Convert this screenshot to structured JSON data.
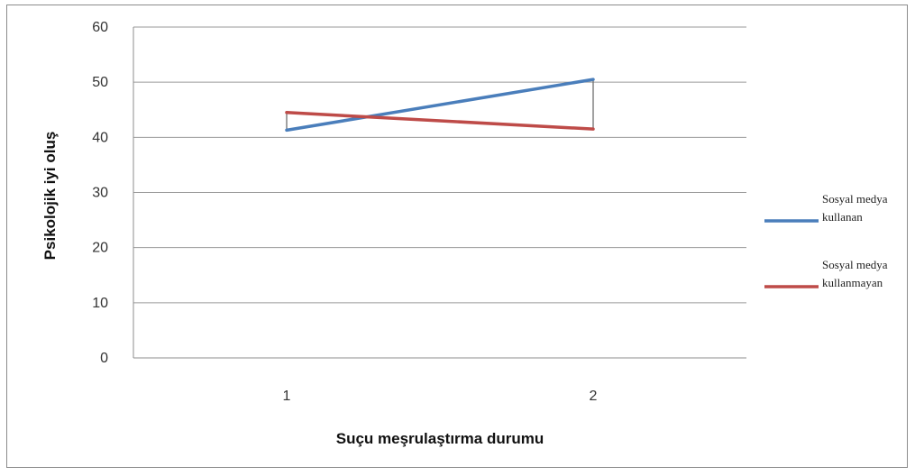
{
  "chart_data": {
    "type": "line",
    "title": "",
    "xlabel": "Suçu meşrulaştırma durumu",
    "ylabel": "Psikolojik iyi oluş",
    "categories": [
      "1",
      "2"
    ],
    "ylim": [
      0,
      60
    ],
    "yticks": [
      0,
      10,
      20,
      30,
      40,
      50,
      60
    ],
    "grid": true,
    "legend_position": "right",
    "series": [
      {
        "name": "Sosyal medya kullanan",
        "legend_lines": [
          "Sosyal medya",
          "kullanan"
        ],
        "values": [
          41.3,
          50.5
        ],
        "color": "#4a7ebb"
      },
      {
        "name": "Sosyal medya kullanmayan",
        "legend_lines": [
          "Sosyal medya",
          "kullanmayan"
        ],
        "values": [
          44.5,
          41.5
        ],
        "color": "#be4b48"
      }
    ]
  }
}
